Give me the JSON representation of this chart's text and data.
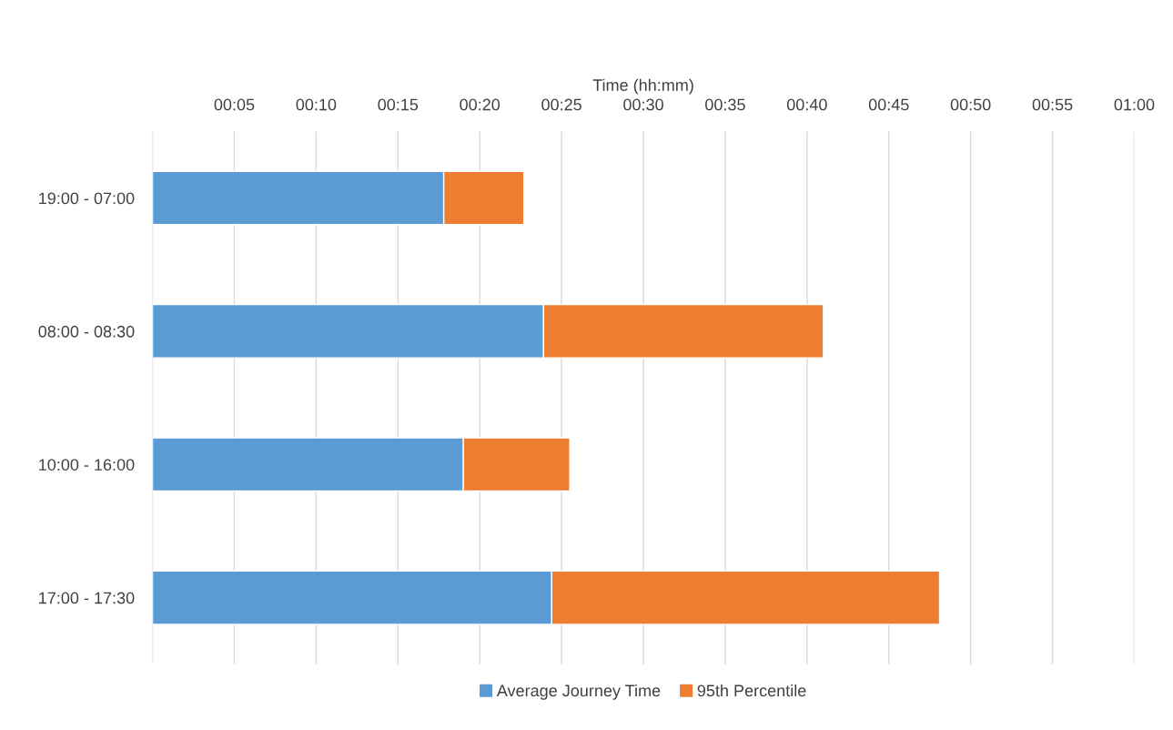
{
  "chart_data": {
    "type": "bar",
    "orientation": "horizontal",
    "stacked": true,
    "xlabel": "Time (hh:mm)",
    "categories": [
      "19:00 - 07:00",
      "08:00 - 08:30",
      "10:00 - 16:00",
      "17:00 - 17:30"
    ],
    "series": [
      {
        "name": "Average Journey Time",
        "color": "#5b9bd5",
        "values": [
          17.8,
          23.9,
          19.0,
          24.4
        ]
      },
      {
        "name": "95th Percentile",
        "color": "#ed7d31",
        "values": [
          4.9,
          17.1,
          6.5,
          23.7
        ]
      }
    ],
    "xlim": [
      0,
      60
    ],
    "xticks": [
      {
        "value": 0,
        "label": null
      },
      {
        "value": 5,
        "label": "00:05"
      },
      {
        "value": 10,
        "label": "00:10"
      },
      {
        "value": 15,
        "label": "00:15"
      },
      {
        "value": 20,
        "label": "00:20"
      },
      {
        "value": 25,
        "label": "00:25"
      },
      {
        "value": 30,
        "label": "00:30"
      },
      {
        "value": 35,
        "label": "00:35"
      },
      {
        "value": 40,
        "label": "00:40"
      },
      {
        "value": 45,
        "label": "00:45"
      },
      {
        "value": 50,
        "label": "00:50"
      },
      {
        "value": 55,
        "label": "00:55"
      },
      {
        "value": 60,
        "label": "01:00"
      }
    ],
    "grid": "x",
    "legend": "bottom"
  }
}
